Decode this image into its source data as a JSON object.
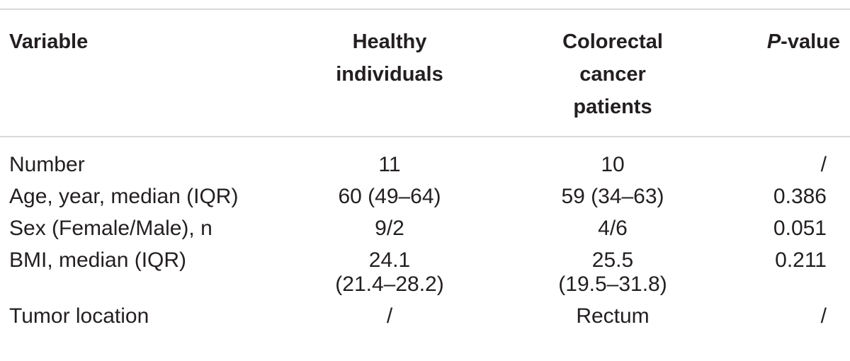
{
  "table": {
    "headers": {
      "variable": "Variable",
      "healthy_line1": "Healthy",
      "healthy_line2": "individuals",
      "crc_line1": "Colorectal",
      "crc_line2": "cancer",
      "crc_line3": "patients",
      "p_italic": "P",
      "p_rest": "-value"
    },
    "rows": [
      {
        "variable": "Number",
        "healthy": "11",
        "healthy2": "",
        "crc": "10",
        "crc2": "",
        "p": "/"
      },
      {
        "variable": "Age, year, median (IQR)",
        "healthy": "60 (49–64)",
        "healthy2": "",
        "crc": "59 (34–63)",
        "crc2": "",
        "p": "0.386"
      },
      {
        "variable": "Sex (Female/Male), n",
        "healthy": "9/2",
        "healthy2": "",
        "crc": "4/6",
        "crc2": "",
        "p": "0.051"
      },
      {
        "variable": "BMI, median (IQR)",
        "healthy": "24.1",
        "healthy2": "(21.4–28.2)",
        "crc": "25.5",
        "crc2": "(19.5–31.8)",
        "p": "0.211"
      },
      {
        "variable": "Tumor location",
        "healthy": "/",
        "healthy2": "",
        "crc": "Rectum",
        "crc2": "",
        "p": "/"
      }
    ]
  }
}
